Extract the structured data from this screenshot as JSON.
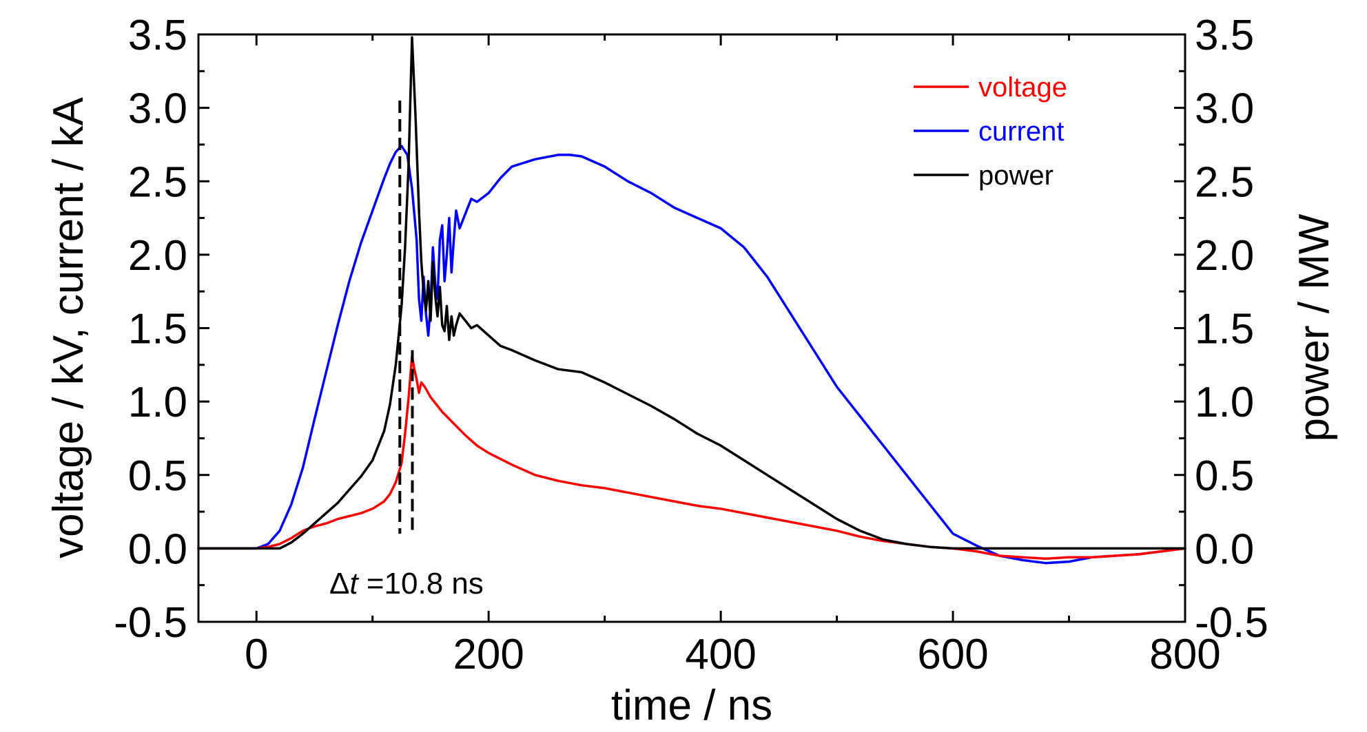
{
  "chart_data": {
    "type": "line",
    "xlabel": "time / ns",
    "ylabel_left": "voltage / kV, current / kA",
    "ylabel_right": "power / MW",
    "xlim": [
      -50,
      800
    ],
    "ylim_left": [
      -0.5,
      3.5
    ],
    "ylim_right": [
      -0.5,
      3.5
    ],
    "x_ticks": [
      "0",
      "200",
      "400",
      "600",
      "800"
    ],
    "x_tick_values": [
      0,
      200,
      400,
      600,
      800
    ],
    "y_ticks": [
      "-0.5",
      "0.0",
      "0.5",
      "1.0",
      "1.5",
      "2.0",
      "2.5",
      "3.0",
      "3.5"
    ],
    "y_tick_values": [
      -0.5,
      0.0,
      0.5,
      1.0,
      1.5,
      2.0,
      2.5,
      3.0,
      3.5
    ],
    "legend_position": "top-right",
    "annotation": {
      "delta": "Δ",
      "t": "t",
      "value": " =10.8 ns",
      "marker_x": [
        123.5,
        134.3
      ]
    },
    "series": [
      {
        "name": "voltage",
        "color": "#ff0000",
        "x": [
          -50,
          0,
          10,
          20,
          30,
          40,
          50,
          60,
          70,
          80,
          90,
          100,
          110,
          115,
          120,
          125,
          128,
          131,
          134,
          136,
          138,
          140,
          142,
          145,
          150,
          160,
          170,
          180,
          190,
          200,
          220,
          240,
          260,
          280,
          300,
          320,
          340,
          360,
          380,
          400,
          420,
          440,
          460,
          480,
          500,
          520,
          540,
          560,
          580,
          600,
          620,
          640,
          660,
          680,
          700,
          720,
          740,
          760,
          780,
          800
        ],
        "y": [
          0.0,
          0.0,
          0.01,
          0.03,
          0.07,
          0.12,
          0.15,
          0.17,
          0.2,
          0.22,
          0.24,
          0.27,
          0.32,
          0.37,
          0.45,
          0.58,
          0.78,
          1.02,
          1.31,
          1.22,
          1.15,
          1.06,
          1.13,
          1.1,
          1.03,
          0.93,
          0.85,
          0.77,
          0.7,
          0.65,
          0.57,
          0.5,
          0.46,
          0.43,
          0.41,
          0.38,
          0.35,
          0.32,
          0.29,
          0.27,
          0.24,
          0.21,
          0.18,
          0.15,
          0.12,
          0.08,
          0.05,
          0.03,
          0.01,
          0.0,
          -0.02,
          -0.05,
          -0.06,
          -0.07,
          -0.06,
          -0.06,
          -0.05,
          -0.04,
          -0.02,
          0.0
        ]
      },
      {
        "name": "current",
        "color": "#0000ff",
        "x": [
          -50,
          0,
          10,
          20,
          30,
          40,
          50,
          60,
          70,
          80,
          90,
          100,
          110,
          115,
          120,
          125,
          130,
          134,
          138,
          140,
          142,
          144,
          146,
          148,
          150,
          152,
          154,
          156,
          158,
          160,
          162,
          164,
          166,
          168,
          170,
          172,
          175,
          180,
          185,
          190,
          200,
          210,
          220,
          240,
          260,
          270,
          280,
          300,
          320,
          340,
          360,
          380,
          400,
          420,
          440,
          460,
          480,
          500,
          520,
          540,
          560,
          580,
          600,
          620,
          640,
          660,
          680,
          700,
          720,
          740,
          760,
          780,
          800
        ],
        "y": [
          0.0,
          0.0,
          0.03,
          0.12,
          0.3,
          0.55,
          0.88,
          1.2,
          1.52,
          1.82,
          2.08,
          2.3,
          2.52,
          2.62,
          2.7,
          2.74,
          2.68,
          2.45,
          2.1,
          1.7,
          1.55,
          1.85,
          1.6,
          1.45,
          1.65,
          2.05,
          1.8,
          1.7,
          2.1,
          2.2,
          1.82,
          2.0,
          2.25,
          1.88,
          2.1,
          2.3,
          2.18,
          2.28,
          2.38,
          2.36,
          2.42,
          2.52,
          2.6,
          2.65,
          2.68,
          2.68,
          2.67,
          2.6,
          2.5,
          2.42,
          2.32,
          2.25,
          2.18,
          2.05,
          1.85,
          1.6,
          1.35,
          1.1,
          0.9,
          0.7,
          0.5,
          0.3,
          0.1,
          0.02,
          -0.05,
          -0.08,
          -0.1,
          -0.09,
          -0.06,
          -0.05,
          -0.04,
          -0.02,
          0.0
        ]
      },
      {
        "name": "power",
        "color": "#000000",
        "x": [
          -50,
          0,
          20,
          30,
          40,
          50,
          60,
          70,
          80,
          90,
          100,
          110,
          115,
          120,
          125,
          128,
          131,
          134,
          137,
          140,
          142,
          144,
          146,
          148,
          150,
          152,
          154,
          156,
          158,
          160,
          162,
          164,
          166,
          168,
          170,
          172,
          175,
          180,
          185,
          190,
          200,
          210,
          220,
          240,
          260,
          280,
          300,
          320,
          340,
          360,
          380,
          400,
          420,
          440,
          460,
          480,
          500,
          520,
          540,
          560,
          580,
          600,
          620,
          640,
          660,
          680,
          700,
          720,
          740,
          760,
          780,
          800
        ],
        "y": [
          0.0,
          0.0,
          0.0,
          0.04,
          0.1,
          0.17,
          0.24,
          0.31,
          0.4,
          0.49,
          0.6,
          0.8,
          0.98,
          1.25,
          1.65,
          2.05,
          2.6,
          3.48,
          2.95,
          2.3,
          1.95,
          1.75,
          1.62,
          1.82,
          1.55,
          1.95,
          1.72,
          1.58,
          1.78,
          1.52,
          1.48,
          1.65,
          1.42,
          1.58,
          1.45,
          1.52,
          1.6,
          1.55,
          1.5,
          1.52,
          1.45,
          1.38,
          1.35,
          1.28,
          1.22,
          1.2,
          1.13,
          1.05,
          0.97,
          0.88,
          0.78,
          0.7,
          0.6,
          0.5,
          0.4,
          0.3,
          0.2,
          0.12,
          0.06,
          0.03,
          0.01,
          0.0,
          0.0,
          0.0,
          0.0,
          0.0,
          0.0,
          0.0,
          0.0,
          0.0,
          0.0,
          0.0
        ]
      }
    ]
  }
}
